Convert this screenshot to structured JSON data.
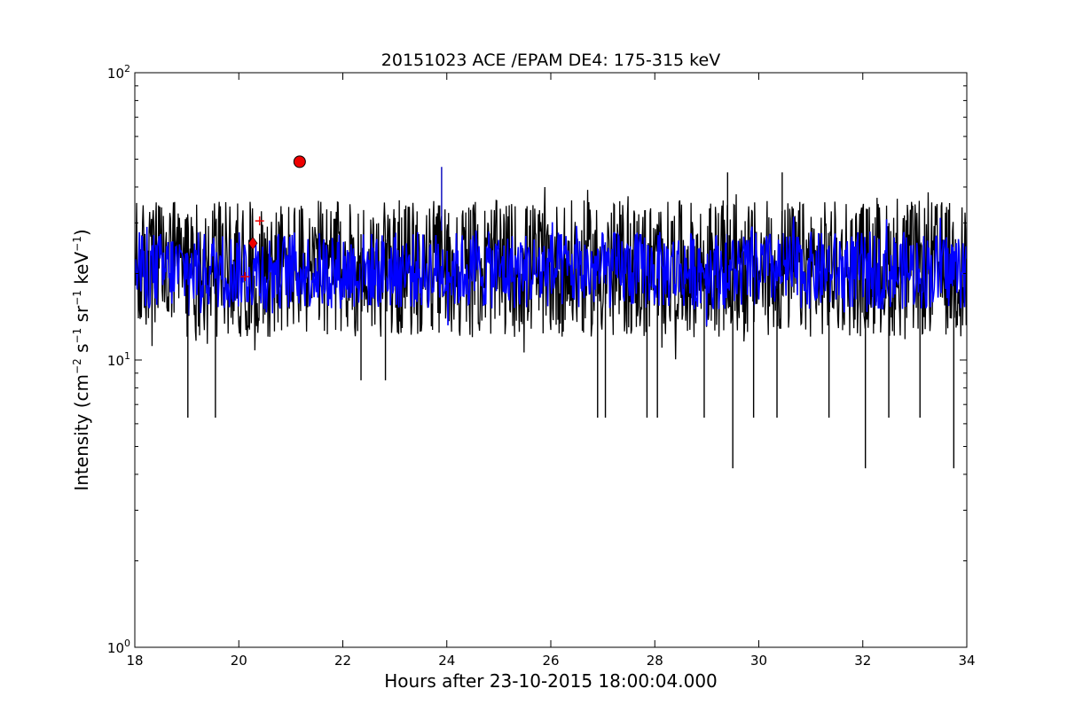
{
  "chart_data": {
    "type": "line",
    "title": "20151023 ACE /EPAM DE4: 175-315 keV",
    "xlabel": "Hours after 23-10-2015 18:00:04.000",
    "ylabel": {
      "parts": [
        "Intensity (cm",
        "−2",
        " s",
        "−1",
        " sr",
        "−1",
        " keV",
        "−1",
        ")"
      ]
    },
    "xlim": [
      18,
      34
    ],
    "ylim": [
      1,
      100
    ],
    "yscale": "log",
    "grid": false,
    "legend": "none",
    "x_ticks": [
      {
        "value": 18,
        "label": "18"
      },
      {
        "value": 20,
        "label": "20"
      },
      {
        "value": 22,
        "label": "22"
      },
      {
        "value": 24,
        "label": "24"
      },
      {
        "value": 26,
        "label": "26"
      },
      {
        "value": 28,
        "label": "28"
      },
      {
        "value": 30,
        "label": "30"
      },
      {
        "value": 32,
        "label": "32"
      },
      {
        "value": 34,
        "label": "34"
      }
    ],
    "y_ticks": [
      {
        "value": 1,
        "base": "10",
        "exp": "0"
      },
      {
        "value": 10,
        "base": "10",
        "exp": "1"
      },
      {
        "value": 100,
        "base": "10",
        "exp": "2"
      }
    ],
    "series": [
      {
        "color": "#000000",
        "x": [
          18.0,
          18.25,
          18.5,
          18.75,
          19.0,
          19.25,
          19.5,
          19.75,
          20.0,
          20.25,
          20.5,
          20.75,
          21.0,
          21.25,
          21.5,
          21.75,
          22.0,
          22.25,
          22.5,
          22.75,
          23.0,
          23.25,
          23.5,
          23.75,
          24.0,
          24.25,
          24.5,
          24.75,
          25.0,
          25.25,
          25.5,
          25.75,
          26.0,
          26.25,
          26.5,
          26.75,
          27.0,
          27.25,
          27.5,
          27.75,
          28.0,
          28.25,
          28.5,
          28.75,
          29.0,
          29.25,
          29.5,
          29.75,
          30.0,
          30.25,
          30.5,
          30.75,
          31.0,
          31.25,
          31.5,
          31.75,
          32.0,
          32.25,
          32.5,
          32.75,
          33.0,
          33.25,
          33.5,
          33.75,
          34.0
        ],
        "y": [
          20,
          21,
          19,
          20,
          18,
          21,
          19,
          20,
          17,
          22,
          24,
          25,
          27,
          29,
          28,
          30,
          28,
          27,
          28,
          26,
          27,
          26,
          25,
          27,
          29,
          24,
          23,
          24,
          22,
          23,
          21,
          22,
          21,
          22,
          20,
          21,
          20,
          19,
          21,
          20,
          19,
          20,
          21,
          20,
          19,
          18,
          19,
          20,
          19,
          18,
          20,
          19,
          20,
          21,
          19,
          20,
          19,
          20,
          19,
          20,
          18,
          19,
          20,
          19,
          20
        ],
        "envelope": [
          12,
          36,
          10,
          40
        ]
      },
      {
        "color": "#0000ff",
        "x": [
          18.0,
          18.25,
          18.5,
          18.75,
          19.0,
          19.25,
          19.5,
          19.75,
          20.0,
          20.25,
          20.5,
          20.75,
          21.0,
          21.25,
          21.5,
          21.75,
          22.0,
          22.25,
          22.5,
          22.75,
          23.0,
          23.25,
          23.5,
          23.75,
          24.0,
          24.25,
          24.5,
          24.75,
          25.0,
          25.25,
          25.5,
          25.75,
          26.0,
          26.25,
          26.5,
          26.75,
          27.0,
          27.25,
          27.5,
          27.75,
          28.0,
          28.25,
          28.5,
          28.75,
          29.0,
          29.25,
          29.5,
          29.75,
          30.0,
          30.25,
          30.5,
          30.75,
          31.0,
          31.25,
          31.5,
          31.75,
          32.0,
          32.25,
          32.5,
          32.75,
          33.0,
          33.25,
          33.5,
          33.75,
          34.0
        ],
        "y": [
          20,
          21,
          19,
          20,
          18,
          21,
          19,
          20,
          17,
          22,
          24,
          25,
          27,
          29,
          28,
          30,
          28,
          27,
          28,
          26,
          27,
          26,
          25,
          27,
          29,
          24,
          23,
          24,
          22,
          23,
          21,
          22,
          21,
          22,
          20,
          21,
          20,
          19,
          21,
          20,
          19,
          20,
          21,
          20,
          19,
          18,
          19,
          20,
          19,
          18,
          20,
          19,
          20,
          21,
          19,
          20,
          19,
          20,
          19,
          20,
          18,
          19,
          20,
          19,
          20
        ],
        "envelope": [
          15,
          28,
          13,
          32
        ]
      }
    ],
    "spikes": [
      {
        "x": 19.02,
        "y": 6.3,
        "color": "#000000"
      },
      {
        "x": 19.55,
        "y": 6.3,
        "color": "#000000"
      },
      {
        "x": 22.35,
        "y": 8.5,
        "color": "#000000"
      },
      {
        "x": 22.82,
        "y": 8.5,
        "color": "#000000"
      },
      {
        "x": 23.9,
        "y": 47,
        "color": "#0000bb"
      },
      {
        "x": 26.9,
        "y": 6.3,
        "color": "#000000"
      },
      {
        "x": 27.05,
        "y": 6.3,
        "color": "#000000"
      },
      {
        "x": 27.85,
        "y": 6.3,
        "color": "#000000"
      },
      {
        "x": 28.05,
        "y": 6.3,
        "color": "#000000"
      },
      {
        "x": 28.95,
        "y": 6.3,
        "color": "#000000"
      },
      {
        "x": 29.5,
        "y": 4.2,
        "color": "#000000"
      },
      {
        "x": 29.9,
        "y": 6.3,
        "color": "#000000"
      },
      {
        "x": 30.35,
        "y": 6.3,
        "color": "#000000"
      },
      {
        "x": 31.35,
        "y": 6.3,
        "color": "#000000"
      },
      {
        "x": 32.05,
        "y": 4.2,
        "color": "#000000"
      },
      {
        "x": 32.5,
        "y": 6.3,
        "color": "#000000"
      },
      {
        "x": 33.1,
        "y": 6.3,
        "color": "#000000"
      },
      {
        "x": 33.75,
        "y": 4.2,
        "color": "#000000"
      },
      {
        "x": 29.4,
        "y": 45,
        "color": "#000000"
      },
      {
        "x": 30.45,
        "y": 45,
        "color": "#000000"
      }
    ],
    "markers": [
      {
        "shape": "circle",
        "x": 21.17,
        "y": 49,
        "color": "#ee0000"
      },
      {
        "shape": "diamond",
        "x": 20.27,
        "y": 25.5,
        "color": "#ee0000"
      },
      {
        "shape": "plus",
        "x": 20.4,
        "y": 30.5,
        "color": "#ee0000"
      },
      {
        "shape": "plus",
        "x": 20.12,
        "y": 19.5,
        "color": "#ee0000"
      }
    ]
  }
}
